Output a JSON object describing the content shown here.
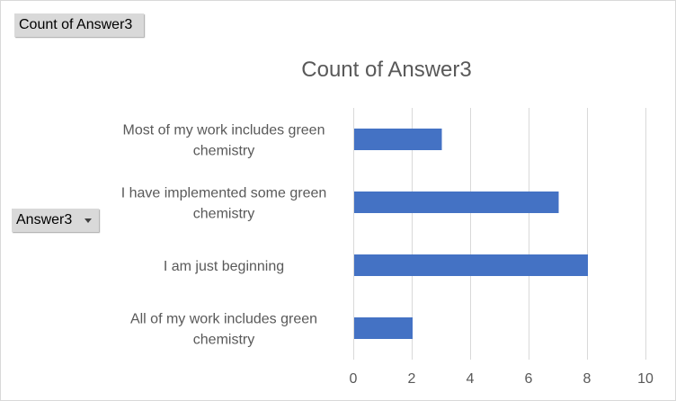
{
  "pivot": {
    "values_field": "Count of Answer3",
    "axis_field": "Answer3"
  },
  "colors": {
    "bar": "#4472c4",
    "gridline": "#d9d9d9",
    "text": "#595959",
    "field_button": "#d9d9d9"
  },
  "chart_data": {
    "type": "bar",
    "orientation": "horizontal",
    "title": "Count of Answer3",
    "categories": [
      "Most of my work includes green chemistry",
      "I have implemented some green chemistry",
      "I am just beginning",
      "All of my work includes green chemistry"
    ],
    "category_label_lines": [
      [
        "Most of my work includes green",
        "chemistry"
      ],
      [
        "I have implemented some green",
        "chemistry"
      ],
      [
        "I am just beginning"
      ],
      [
        "All of my work includes green",
        "chemistry"
      ]
    ],
    "series": [
      {
        "values": [
          3,
          7,
          8,
          2
        ]
      }
    ],
    "xlim": [
      0,
      10
    ],
    "xticks": [
      0,
      2,
      4,
      6,
      8,
      10
    ],
    "grid": true,
    "legend": "none"
  }
}
